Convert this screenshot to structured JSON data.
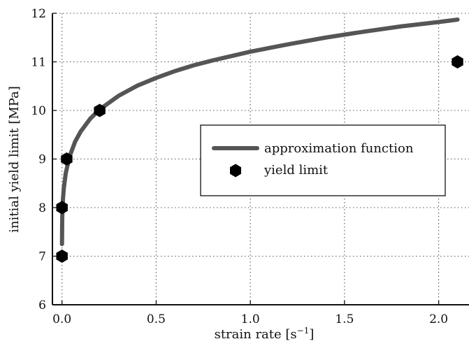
{
  "chart_data": {
    "type": "line",
    "title": "",
    "xlabel": "strain rate [s",
    "xlabel_sup": "−1",
    "xlabel_end": "]",
    "ylabel": "initial yield limit [MPa]",
    "xlim": [
      -0.03,
      2.15
    ],
    "ylim": [
      6,
      12
    ],
    "xticks": [
      0.0,
      0.5,
      1.0,
      1.5,
      2.0
    ],
    "xtick_labels": [
      "0.0",
      "0.5",
      "1.0",
      "1.5",
      "2.0"
    ],
    "yticks": [
      6,
      7,
      8,
      9,
      10,
      11,
      12
    ],
    "ytick_labels": [
      "6",
      "7",
      "8",
      "9",
      "10",
      "11",
      "12"
    ],
    "grid": true,
    "legend_position": "center-right",
    "series": [
      {
        "name": "approximation function",
        "kind": "line",
        "color": "#555555",
        "x": [
          0.0,
          0.001,
          0.002,
          0.005,
          0.01,
          0.02,
          0.04,
          0.07,
          0.1,
          0.15,
          0.2,
          0.3,
          0.4,
          0.5,
          0.6,
          0.7,
          0.8,
          0.9,
          1.0,
          1.2,
          1.4,
          1.6,
          1.8,
          2.0,
          2.1
        ],
        "y": [
          7.25,
          7.72,
          7.89,
          8.17,
          8.41,
          8.71,
          9.05,
          9.36,
          9.57,
          9.83,
          10.02,
          10.3,
          10.51,
          10.67,
          10.81,
          10.93,
          11.03,
          11.12,
          11.21,
          11.36,
          11.5,
          11.62,
          11.73,
          11.82,
          11.87
        ]
      },
      {
        "name": "yield limit",
        "kind": "scatter",
        "color": "#000000",
        "x": [
          0.0,
          0.0,
          0.025,
          0.2,
          2.1
        ],
        "y": [
          7.0,
          8.0,
          9.0,
          10.0,
          11.0
        ]
      }
    ]
  }
}
